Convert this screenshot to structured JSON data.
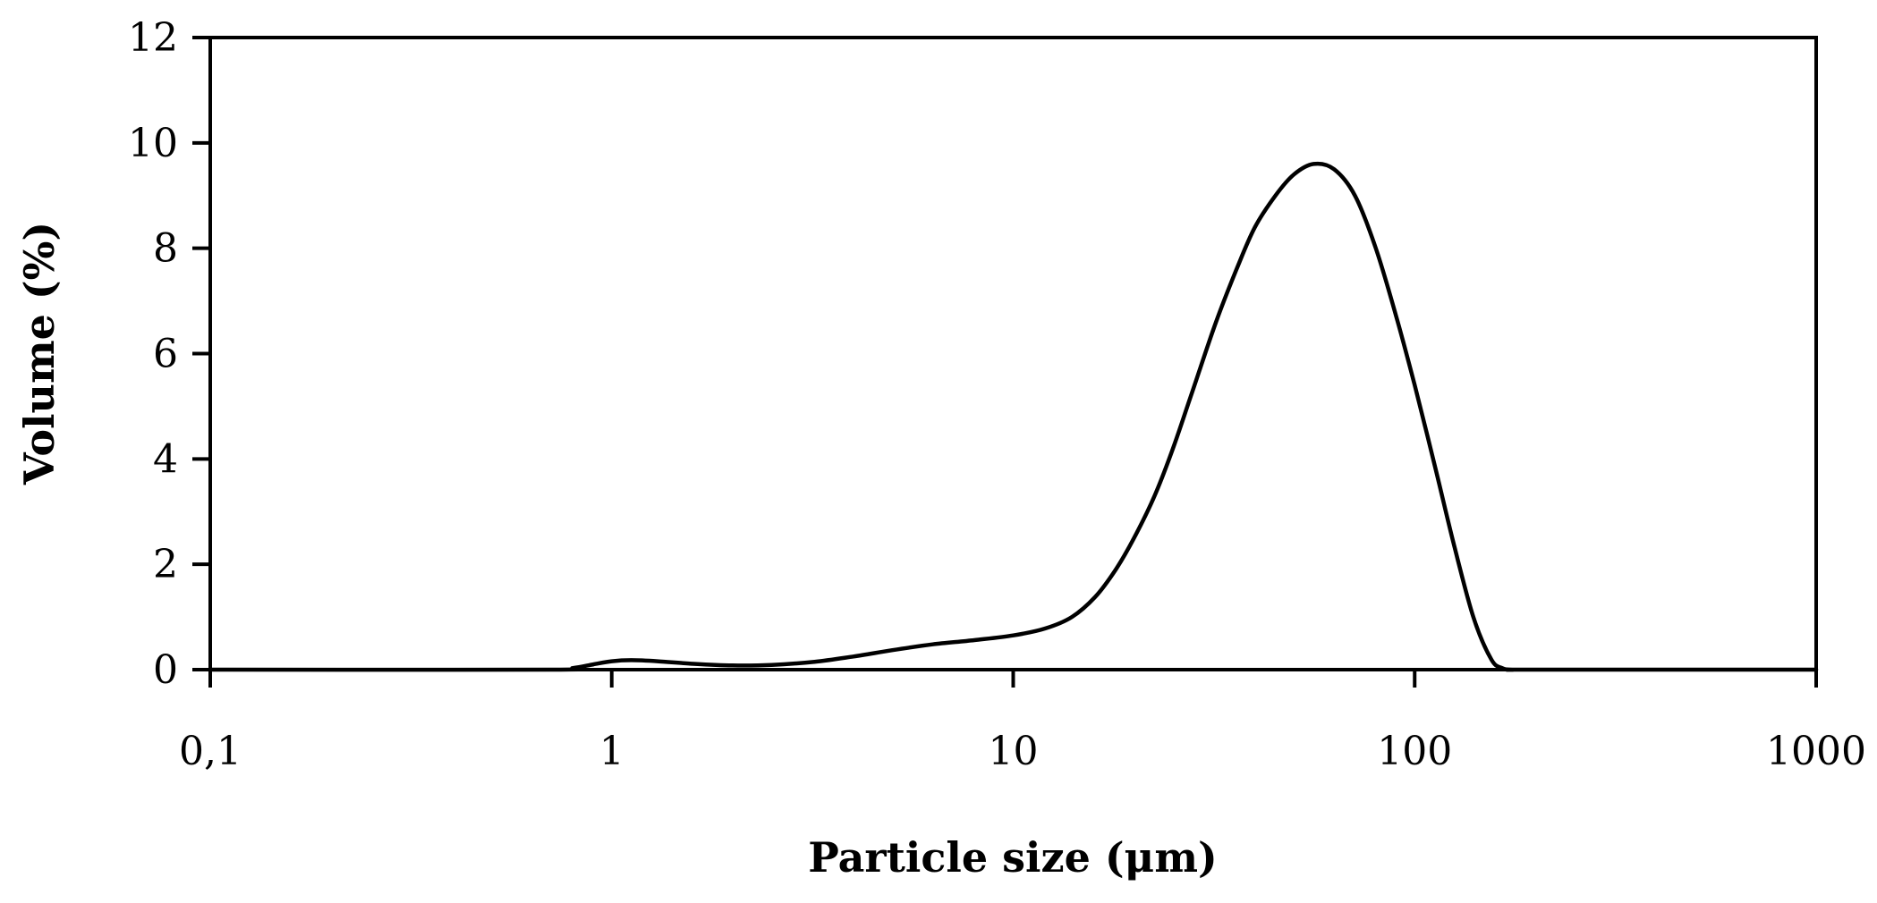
{
  "chart_data": {
    "type": "line",
    "title": "",
    "xlabel": "Particle size (μm)",
    "ylabel": "Volume (%)",
    "x_scale": "log",
    "xlim": [
      0.1,
      1000
    ],
    "ylim": [
      0,
      12
    ],
    "x_ticks": [
      0.1,
      1,
      10,
      100,
      1000
    ],
    "x_tick_labels": [
      "0,1",
      "1",
      "10",
      "100",
      "1000"
    ],
    "y_ticks": [
      0,
      2,
      4,
      6,
      8,
      10,
      12
    ],
    "y_tick_labels": [
      "0",
      "2",
      "4",
      "6",
      "8",
      "10",
      "12"
    ],
    "grid": false,
    "legend": "none",
    "series": [
      {
        "color": "#000000",
        "x": [
          0.1,
          0.7,
          0.8,
          0.9,
          1.0,
          1.12,
          1.3,
          1.6,
          2.0,
          2.5,
          3.2,
          4.0,
          5.0,
          6.3,
          8.0,
          10.0,
          12.0,
          14.0,
          16.0,
          18.0,
          20.0,
          22.5,
          25.0,
          28.0,
          32.0,
          36.0,
          40.0,
          45.0,
          50.0,
          56.0,
          63.0,
          71.0,
          80.0,
          90.0,
          100.0,
          112.0,
          125.0,
          140.0,
          155.0,
          165.0,
          175.0,
          200.0,
          1000.0
        ],
        "y": [
          0,
          0,
          0.03,
          0.1,
          0.16,
          0.18,
          0.16,
          0.11,
          0.08,
          0.09,
          0.15,
          0.25,
          0.37,
          0.48,
          0.56,
          0.65,
          0.78,
          1.0,
          1.38,
          1.9,
          2.5,
          3.3,
          4.2,
          5.3,
          6.6,
          7.6,
          8.4,
          9.0,
          9.4,
          9.6,
          9.5,
          9.0,
          8.0,
          6.7,
          5.4,
          3.9,
          2.4,
          1.0,
          0.2,
          0.03,
          0,
          0,
          0
        ]
      }
    ]
  }
}
